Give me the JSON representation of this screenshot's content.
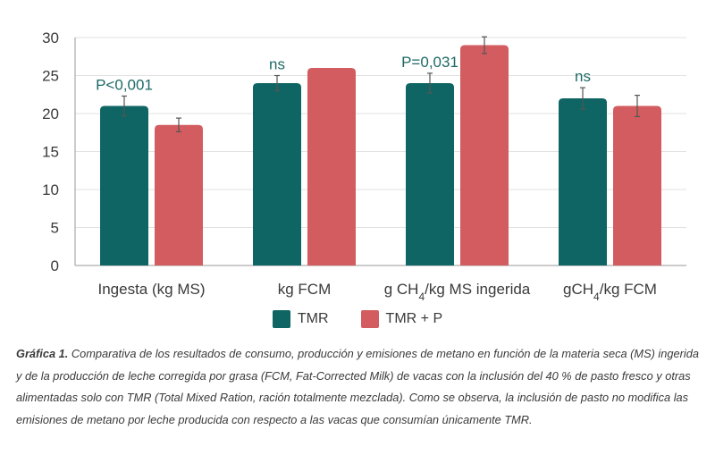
{
  "chart_data": {
    "type": "bar",
    "categories": [
      "Ingesta (kg MS)",
      "kg FCM",
      "g CH4/kg MS ingerida",
      "gCH4/kg FCM"
    ],
    "category_labels": [
      {
        "pre": "Ingesta (kg MS)",
        "sub": "",
        "post": ""
      },
      {
        "pre": "kg FCM",
        "sub": "",
        "post": ""
      },
      {
        "pre": "g CH",
        "sub": "4",
        "post": "/kg MS ingerida"
      },
      {
        "pre": "gCH",
        "sub": "4",
        "post": "/kg FCM"
      }
    ],
    "series": [
      {
        "name": "TMR",
        "color": "#0f6563",
        "values": [
          21,
          24,
          24,
          22
        ],
        "errors": [
          1.3,
          1.0,
          1.3,
          1.4
        ]
      },
      {
        "name": "TMR + P",
        "color": "#d25c5f",
        "values": [
          18.5,
          26,
          29,
          21
        ],
        "errors": [
          0.9,
          0,
          1.1,
          1.4
        ]
      }
    ],
    "significance": [
      "P<0,001",
      "ns",
      "P=0,031",
      "ns"
    ],
    "ylim": [
      0,
      30
    ],
    "yticks": [
      0,
      5,
      10,
      15,
      20,
      25,
      30
    ],
    "grid": true,
    "legend_position": "bottom-center",
    "xlabel": "",
    "ylabel": ""
  },
  "caption": {
    "lead": "Gráfica 1.",
    "text": " Comparativa de los resultados de consumo, producción y emisiones de metano en función de la materia seca (MS) ingerida y de la producción de leche corregida por grasa (FCM, Fat-Corrected Milk) de vacas con la inclusión del 40 % de pasto fresco y otras alimentadas solo con TMR (Total Mixed Ration, ración totalmente mezclada). Como se observa, la inclusión de pasto no modifica las emisiones de metano por leche producida con respecto a las vacas que consumían únicamente TMR."
  }
}
